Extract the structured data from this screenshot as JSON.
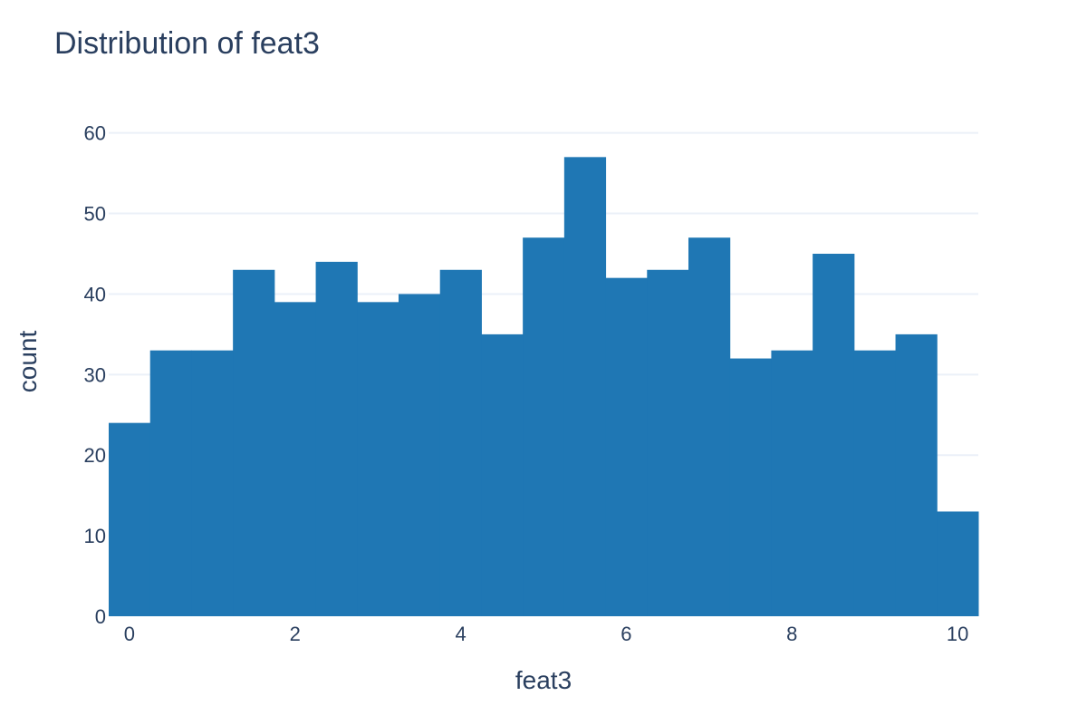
{
  "chart_data": {
    "type": "bar",
    "title": "Distribution of feat3",
    "xlabel": "feat3",
    "ylabel": "count",
    "bin_start": -0.25,
    "bin_width": 0.5,
    "values": [
      24,
      33,
      33,
      43,
      39,
      44,
      39,
      40,
      43,
      35,
      47,
      57,
      42,
      43,
      47,
      32,
      33,
      45,
      33,
      35,
      13
    ],
    "xlim": [
      -0.25,
      10.25
    ],
    "ylim": [
      0,
      63
    ],
    "x_ticks": [
      0,
      2,
      4,
      6,
      8,
      10
    ],
    "x_tick_labels": [
      "0",
      "2",
      "4",
      "6",
      "8",
      "10"
    ],
    "y_ticks": [
      0,
      10,
      20,
      30,
      40,
      50,
      60
    ],
    "y_tick_labels": [
      "0",
      "10",
      "20",
      "30",
      "40",
      "50",
      "60"
    ],
    "grid": true,
    "bar_color": "#1f77b4"
  }
}
